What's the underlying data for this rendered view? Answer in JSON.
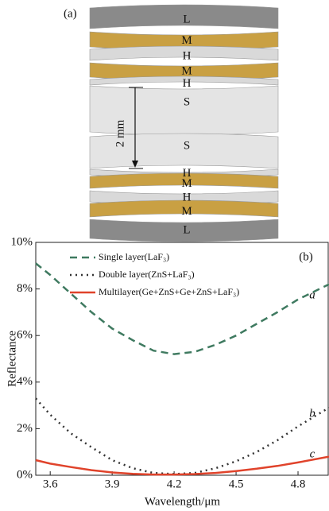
{
  "diagram": {
    "panel_label": "(a)",
    "layers": [
      "L",
      "M",
      "H",
      "M",
      "H",
      "S",
      "S",
      "H",
      "M",
      "H",
      "M",
      "L"
    ],
    "scale_label": "2 mm"
  },
  "chart_data": {
    "type": "line",
    "panel_label": "(b)",
    "x_label": "Wavelength/μm",
    "y_label": "Reflectance",
    "xlim": [
      3.53,
      4.95
    ],
    "xticks": [
      3.6,
      3.9,
      4.2,
      4.5,
      4.8
    ],
    "ylim": [
      0,
      10
    ],
    "yticks": [
      {
        "value": 0,
        "label": "0%"
      },
      {
        "value": 2,
        "label": "2%"
      },
      {
        "value": 4,
        "label": "4%"
      },
      {
        "value": 6,
        "label": "6%"
      },
      {
        "value": 8,
        "label": "8%"
      },
      {
        "value": 10,
        "label": "10%"
      }
    ],
    "legend": "upper left",
    "x": [
      3.53,
      3.6,
      3.7,
      3.8,
      3.9,
      4.0,
      4.1,
      4.2,
      4.3,
      4.4,
      4.5,
      4.6,
      4.7,
      4.8,
      4.95
    ],
    "series": [
      {
        "name": "Single layer(LaF₃)",
        "label": "a",
        "color": "#3f7a60",
        "dash": "9 6",
        "values": [
          9.1,
          8.6,
          7.8,
          7.0,
          6.3,
          5.8,
          5.35,
          5.2,
          5.3,
          5.6,
          6.0,
          6.5,
          7.0,
          7.55,
          8.2
        ]
      },
      {
        "name": "Double layer(ZnS+LaF₃)",
        "label": "b",
        "color": "#333333",
        "dash": "2 5",
        "values": [
          3.3,
          2.6,
          1.8,
          1.2,
          0.65,
          0.3,
          0.1,
          0.05,
          0.1,
          0.3,
          0.6,
          1.0,
          1.5,
          2.1,
          2.9
        ]
      },
      {
        "name": "Multilayer(Ge+ZnS+Ge+ZnS+LaF₃)",
        "label": "c",
        "color": "#e0432b",
        "dash": "none",
        "values": [
          0.65,
          0.5,
          0.35,
          0.22,
          0.12,
          0.06,
          0.03,
          0.03,
          0.05,
          0.1,
          0.18,
          0.28,
          0.4,
          0.55,
          0.8
        ]
      }
    ]
  }
}
